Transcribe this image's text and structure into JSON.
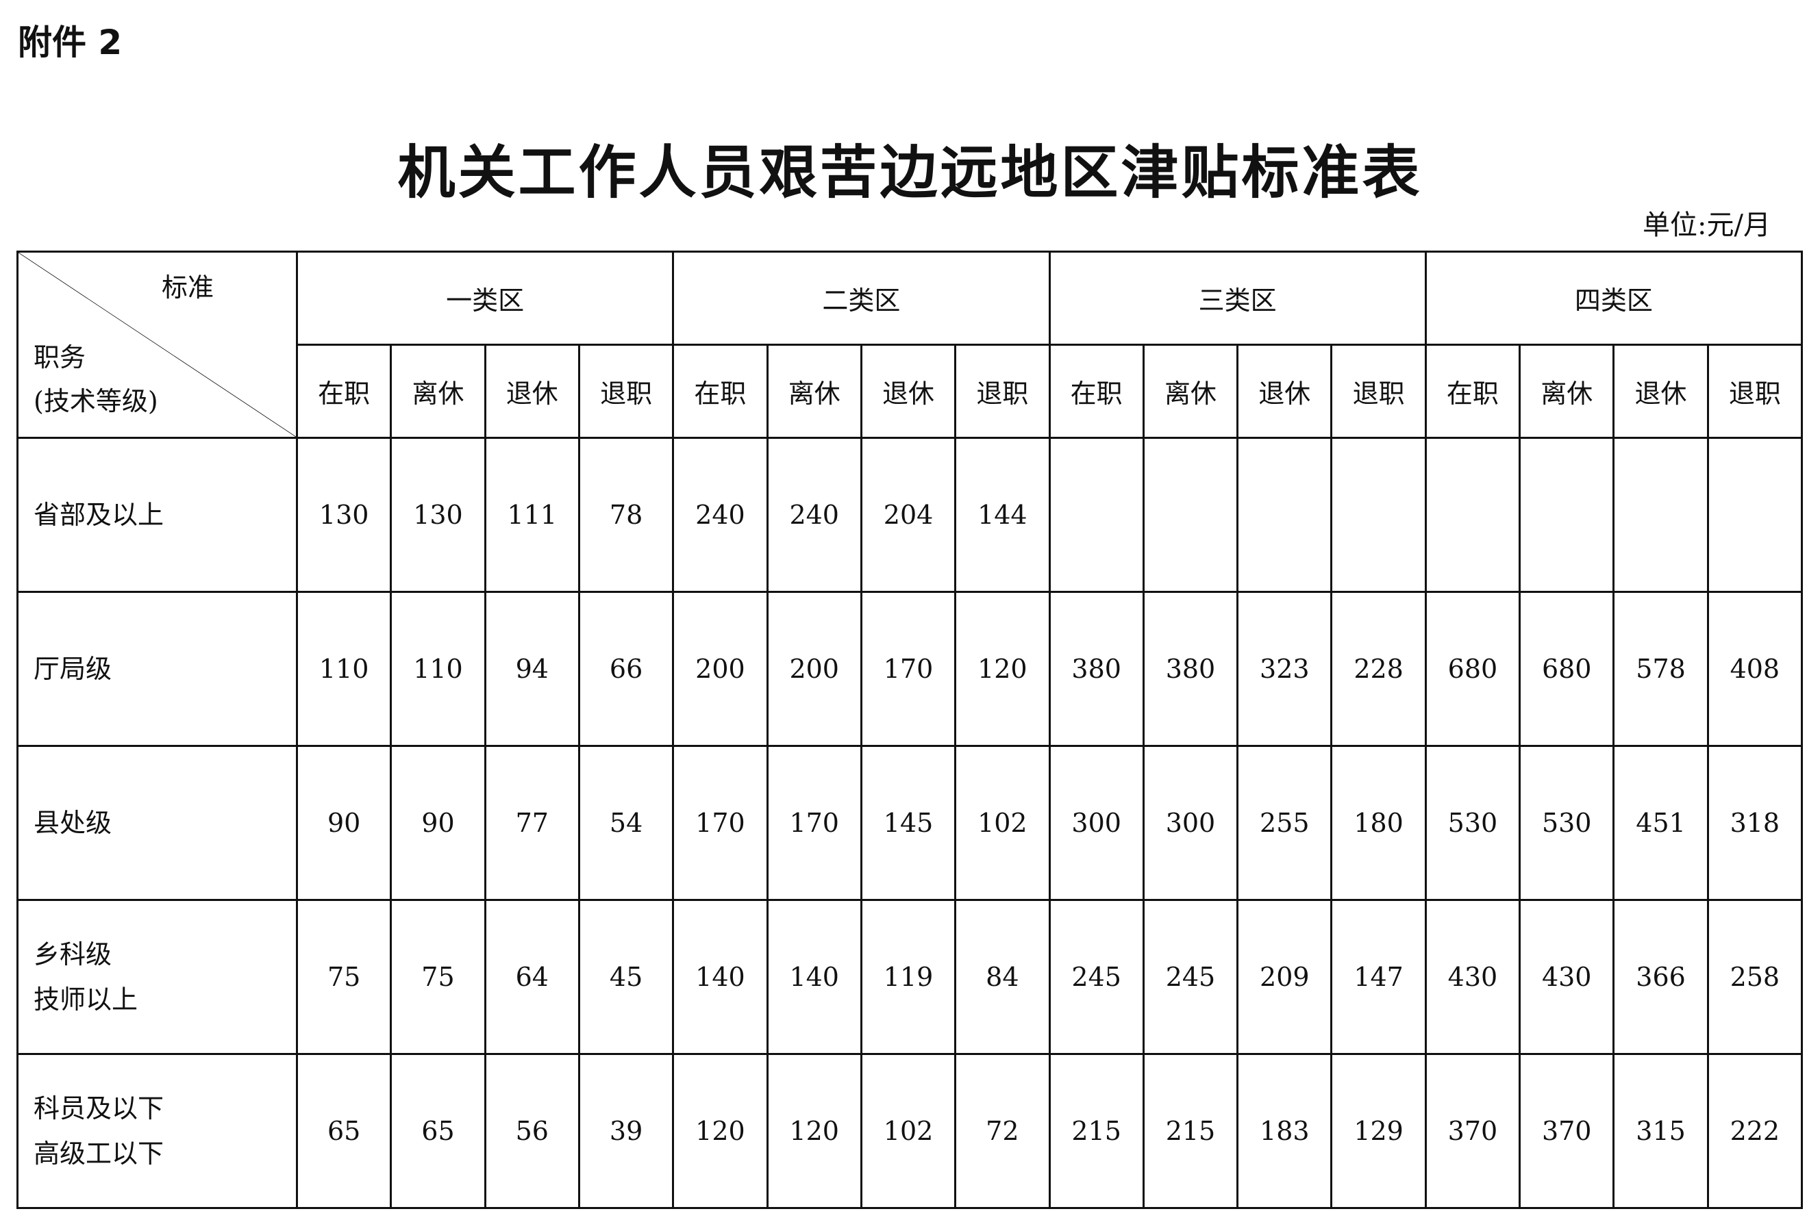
{
  "attachment_label": "附件 2",
  "title": "机关工作人员艰苦边远地区津贴标准表",
  "unit": "单位:元/月",
  "corner": {
    "top": "标准",
    "bottom_line1": "职务",
    "bottom_line2": "(技术等级)"
  },
  "zones": [
    "一类区",
    "二类区",
    "三类区",
    "四类区"
  ],
  "subcolumns": [
    "在职",
    "离休",
    "退休",
    "退职"
  ],
  "rows": [
    {
      "label": [
        "省部及以上"
      ],
      "values": [
        "130",
        "130",
        "111",
        "78",
        "240",
        "240",
        "204",
        "144",
        "",
        "",
        "",
        "",
        "",
        "",
        "",
        ""
      ]
    },
    {
      "label": [
        "厅局级"
      ],
      "values": [
        "110",
        "110",
        "94",
        "66",
        "200",
        "200",
        "170",
        "120",
        "380",
        "380",
        "323",
        "228",
        "680",
        "680",
        "578",
        "408"
      ]
    },
    {
      "label": [
        "县处级"
      ],
      "values": [
        "90",
        "90",
        "77",
        "54",
        "170",
        "170",
        "145",
        "102",
        "300",
        "300",
        "255",
        "180",
        "530",
        "530",
        "451",
        "318"
      ]
    },
    {
      "label": [
        "乡科级",
        "技师以上"
      ],
      "values": [
        "75",
        "75",
        "64",
        "45",
        "140",
        "140",
        "119",
        "84",
        "245",
        "245",
        "209",
        "147",
        "430",
        "430",
        "366",
        "258"
      ]
    },
    {
      "label": [
        "科员及以下",
        "高级工以下"
      ],
      "values": [
        "65",
        "65",
        "56",
        "39",
        "120",
        "120",
        "102",
        "72",
        "215",
        "215",
        "183",
        "129",
        "370",
        "370",
        "315",
        "222"
      ]
    }
  ]
}
